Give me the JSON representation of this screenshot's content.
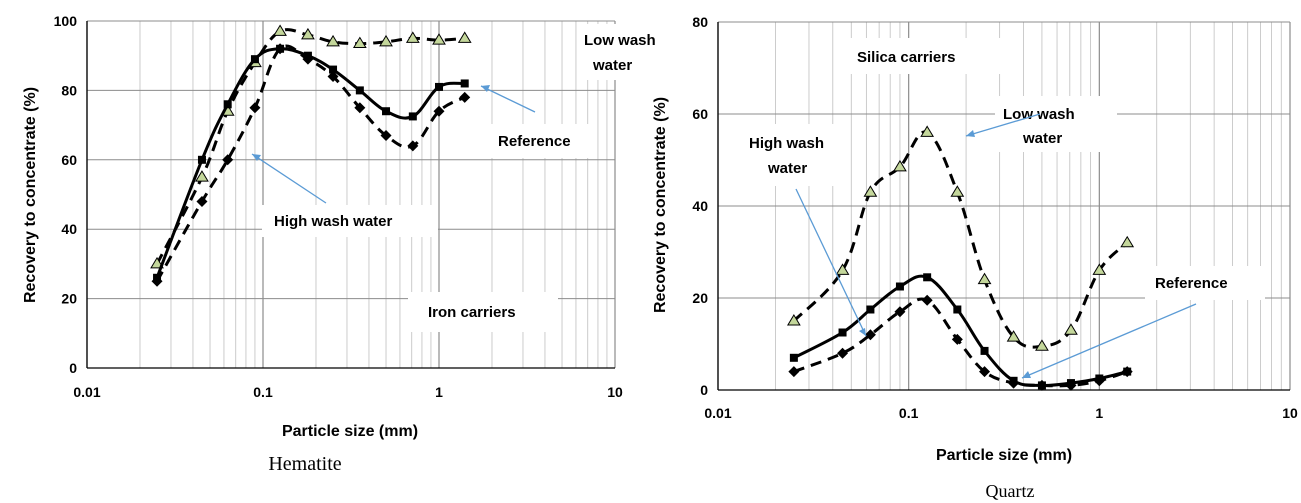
{
  "chart_data": [
    {
      "type": "line",
      "caption": "Hematite",
      "xlabel": "Particle size (mm)",
      "ylabel": "Recovery to concentrate (%)",
      "xscale": "log",
      "xlim": [
        0.01,
        10
      ],
      "ylim": [
        0,
        100
      ],
      "xticks": [
        "0.01",
        "0.1",
        "1",
        "10"
      ],
      "yticks": [
        "0",
        "20",
        "40",
        "60",
        "80",
        "100"
      ],
      "grid": true,
      "series": [
        {
          "name": "Low wash water",
          "line": "dashed",
          "marker": "triangle",
          "color": "#000000",
          "marker_fill": "#c4d79b",
          "x": [
            0.025,
            0.045,
            0.063,
            0.09,
            0.125,
            0.18,
            0.25,
            0.355,
            0.5,
            0.71,
            1.0,
            1.4
          ],
          "y": [
            30,
            55,
            74,
            88,
            97,
            96,
            94,
            93.5,
            94,
            95,
            94.5,
            95
          ]
        },
        {
          "name": "Reference",
          "line": "solid",
          "marker": "square",
          "color": "#000000",
          "x": [
            0.025,
            0.045,
            0.063,
            0.09,
            0.125,
            0.18,
            0.25,
            0.355,
            0.5,
            0.71,
            1.0,
            1.4
          ],
          "y": [
            26,
            60,
            76,
            89,
            92,
            90,
            86,
            80,
            74,
            72.5,
            81,
            82
          ]
        },
        {
          "name": "High wash water",
          "line": "dashed",
          "marker": "diamond",
          "color": "#000000",
          "x": [
            0.025,
            0.045,
            0.063,
            0.09,
            0.125,
            0.18,
            0.25,
            0.355,
            0.5,
            0.71,
            1.0,
            1.4
          ],
          "y": [
            25,
            48,
            60,
            75,
            92,
            89,
            84,
            75,
            67,
            64,
            74,
            78
          ]
        }
      ],
      "annotations": [
        {
          "text": "Low wash",
          "text2": "water"
        },
        {
          "text": "Reference"
        },
        {
          "text": "High wash water"
        },
        {
          "text": "Iron carriers"
        }
      ]
    },
    {
      "type": "line",
      "caption": "Quartz",
      "xlabel": "Particle size (mm)",
      "ylabel": "Recovery to concentrate (%)",
      "xscale": "log",
      "xlim": [
        0.01,
        10
      ],
      "ylim": [
        0,
        80
      ],
      "xticks": [
        "0.01",
        "0.1",
        "1",
        "10"
      ],
      "yticks": [
        "0",
        "20",
        "40",
        "60",
        "80"
      ],
      "grid": true,
      "series": [
        {
          "name": "Low wash water",
          "line": "dashed",
          "marker": "triangle",
          "color": "#000000",
          "marker_fill": "#c4d79b",
          "x": [
            0.025,
            0.045,
            0.063,
            0.09,
            0.125,
            0.18,
            0.25,
            0.355,
            0.5,
            0.71,
            1.0,
            1.4
          ],
          "y": [
            15,
            26,
            43,
            48.5,
            56,
            43,
            24,
            11.5,
            9.5,
            13,
            26,
            32
          ]
        },
        {
          "name": "Reference",
          "line": "solid",
          "marker": "square",
          "color": "#000000",
          "x": [
            0.025,
            0.045,
            0.063,
            0.09,
            0.125,
            0.18,
            0.25,
            0.355,
            0.5,
            0.71,
            1.0,
            1.4
          ],
          "y": [
            7,
            12.5,
            17.5,
            22.5,
            24.5,
            17.5,
            8.5,
            2,
            1,
            1.5,
            2.5,
            4
          ]
        },
        {
          "name": "High wash water",
          "line": "dashed",
          "marker": "diamond",
          "color": "#000000",
          "x": [
            0.025,
            0.045,
            0.063,
            0.09,
            0.125,
            0.18,
            0.25,
            0.355,
            0.5,
            0.71,
            1.0,
            1.4
          ],
          "y": [
            4,
            8,
            12,
            17,
            19.5,
            11,
            4,
            1.5,
            1,
            1,
            2,
            4
          ]
        }
      ],
      "annotations": [
        {
          "text": "Silica carriers"
        },
        {
          "text": "Low wash",
          "text2": "water"
        },
        {
          "text": "High wash",
          "text2": "water"
        },
        {
          "text": "Reference"
        }
      ]
    }
  ]
}
